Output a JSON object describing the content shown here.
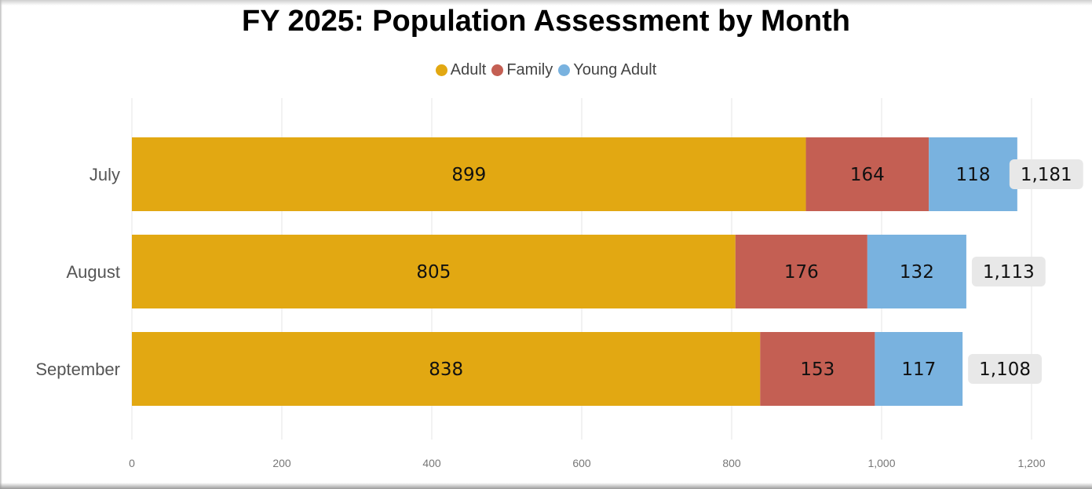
{
  "chart_data": {
    "type": "bar",
    "orientation": "horizontal",
    "stacked": true,
    "title": "FY 2025: Population Assessment by Month",
    "categories": [
      "July",
      "August",
      "September"
    ],
    "series": [
      {
        "name": "Adult",
        "color": "#E2A812",
        "values": [
          899,
          805,
          838
        ]
      },
      {
        "name": "Family",
        "color": "#C45F53",
        "values": [
          164,
          176,
          153
        ]
      },
      {
        "name": "Young Adult",
        "color": "#79B2DF",
        "values": [
          118,
          132,
          117
        ]
      }
    ],
    "totals": [
      1181,
      1113,
      1108
    ],
    "total_labels": [
      "1,181",
      "1,113",
      "1,108"
    ],
    "xlim": [
      0,
      1200
    ],
    "xticks": [
      0,
      200,
      400,
      600,
      800,
      1000,
      1200
    ],
    "xtick_labels": [
      "0",
      "200",
      "400",
      "600",
      "800",
      "1,000",
      "1,200"
    ],
    "legend_position": "top-center",
    "grid": true,
    "total_label_background": "#E8E8E8"
  }
}
